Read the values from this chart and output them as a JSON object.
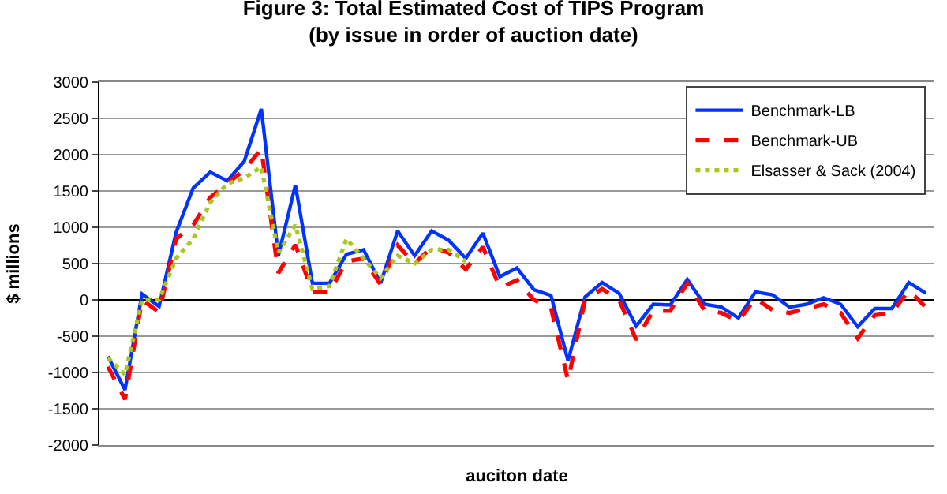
{
  "chart_data": {
    "type": "line",
    "title": "Figure 3: Total Estimated Cost of TIPS Program",
    "subtitle": "(by issue in order of auction date)",
    "xlabel": "auciton date",
    "ylabel": "$ millions",
    "categories": [
      null,
      null,
      null,
      null,
      null,
      null,
      null,
      null,
      null,
      null,
      null,
      null,
      null,
      null,
      null,
      null,
      null,
      null,
      null,
      null,
      null,
      null,
      null,
      null,
      null,
      null,
      null,
      null,
      null,
      null,
      null,
      null,
      null,
      null,
      null,
      null,
      null,
      null,
      null,
      null,
      null,
      null,
      null,
      null,
      null,
      null,
      null,
      null,
      null
    ],
    "series": [
      {
        "name": "Benchmark-LB",
        "color": "#0033ff",
        "line_style": "solid",
        "values": [
          -780,
          -1240,
          80,
          -90,
          930,
          1540,
          1760,
          1640,
          1910,
          2630,
          610,
          1580,
          230,
          230,
          630,
          690,
          230,
          950,
          610,
          950,
          820,
          570,
          920,
          320,
          440,
          140,
          60,
          -840,
          40,
          240,
          90,
          -360,
          -60,
          -70,
          280,
          -60,
          -100,
          -250,
          110,
          70,
          -100,
          -60,
          30,
          -60,
          -370,
          -120,
          -120,
          240,
          90
        ]
      },
      {
        "name": "Benchmark-UB",
        "color": "#ff0000",
        "line_style": "dashed",
        "values": [
          -920,
          -1370,
          0,
          -170,
          840,
          1030,
          1410,
          1600,
          1790,
          2080,
          370,
          760,
          110,
          110,
          530,
          570,
          210,
          750,
          500,
          730,
          650,
          420,
          730,
          170,
          270,
          0,
          -110,
          -1110,
          0,
          150,
          0,
          -550,
          -150,
          -150,
          230,
          -140,
          -180,
          -290,
          20,
          -140,
          -180,
          -120,
          -60,
          -180,
          -530,
          -210,
          -180,
          130,
          -100
        ]
      },
      {
        "name": "Elsasser & Sack (2004)",
        "color": "#a8c820",
        "line_style": "dotted",
        "values": [
          -800,
          -1030,
          0,
          0,
          570,
          840,
          1340,
          1600,
          1680,
          1830,
          650,
          1030,
          150,
          190,
          840,
          570,
          300,
          610,
          500,
          690,
          690,
          530,
          null,
          null,
          null,
          null,
          null,
          null,
          null,
          null,
          null,
          null,
          null,
          null,
          null,
          null,
          null,
          null,
          null,
          null,
          null,
          null,
          null,
          null,
          null,
          null,
          null,
          null,
          null
        ]
      }
    ],
    "ylim": [
      -2000,
      3000
    ],
    "yticks": [
      -2000,
      -1500,
      -1000,
      -500,
      0,
      500,
      1000,
      1500,
      2000,
      2500,
      3000
    ],
    "grid": "y",
    "legend": "top right",
    "tick_labels": "y",
    "marker": "none"
  }
}
